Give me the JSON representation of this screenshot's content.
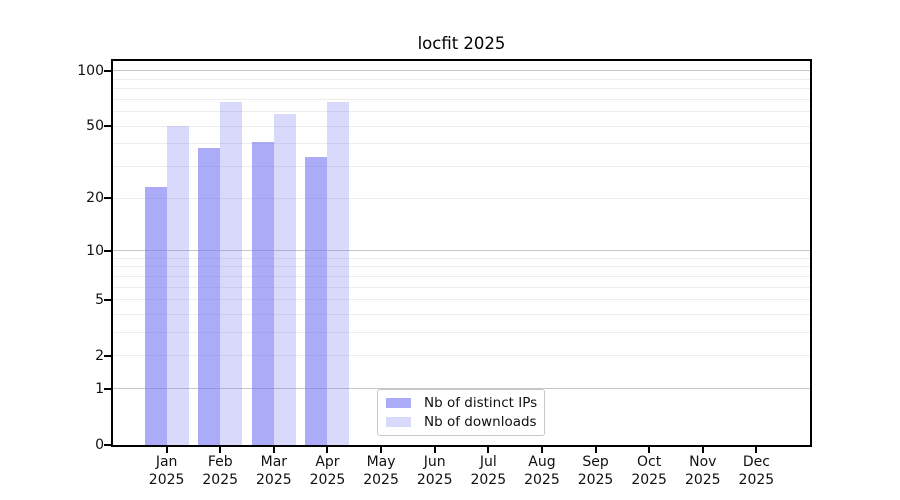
{
  "title": "locfit 2025",
  "chart_data": {
    "type": "bar",
    "title": "locfit 2025",
    "xlabel": "",
    "ylabel": "",
    "y_scale": "log1p",
    "ylim": [
      0,
      113
    ],
    "grid": true,
    "legend_position": "bottom-center",
    "categories": [
      "Jan",
      "Feb",
      "Mar",
      "Apr",
      "May",
      "Jun",
      "Jul",
      "Aug",
      "Sep",
      "Oct",
      "Nov",
      "Dec"
    ],
    "category_year": "2025",
    "yticks": [
      0,
      1,
      2,
      5,
      10,
      20,
      50,
      100
    ],
    "gridlines_minor": [
      2,
      3,
      4,
      5,
      6,
      7,
      8,
      9,
      20,
      30,
      40,
      50,
      60,
      70,
      80,
      90
    ],
    "gridlines_major": [
      1,
      10,
      100
    ],
    "series": [
      {
        "name": "Nb of distinct IPs",
        "color": "rgba(120,120,242,0.62)",
        "values": [
          23,
          38,
          41,
          34,
          0,
          0,
          0,
          0,
          0,
          0,
          0,
          0
        ]
      },
      {
        "name": "Nb of downloads",
        "color": "rgba(120,120,242,0.28)",
        "values": [
          50,
          68,
          58,
          68,
          0,
          0,
          0,
          0,
          0,
          0,
          0,
          0
        ]
      }
    ]
  },
  "colors": {
    "bar_base": "#7878f2",
    "bar_distinct_ips": "#ababf7",
    "bar_downloads": "#d9d9fb",
    "gridline_minor": "#ececec",
    "gridline_major": "#c6c6c6",
    "axis": "#000000",
    "background": "#ffffff"
  }
}
